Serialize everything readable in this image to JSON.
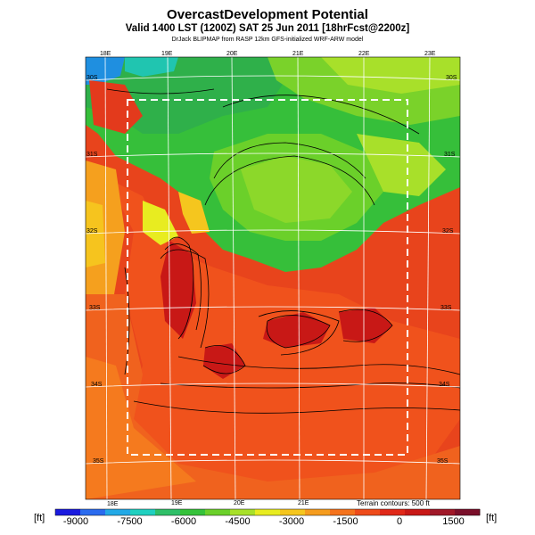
{
  "title": "OvercastDevelopment Potential",
  "subtitle": "Valid 1400 LST (1200Z) SAT 25 Jun 2011 [18hrFcst@2200z]",
  "credit": "DrJack BLIPMAP from RASP 12km GFS-initialized WRF-ARW model",
  "lon_top": [
    "18E",
    "19E",
    "20E",
    "21E",
    "22E",
    "23E"
  ],
  "lon_bottom": [
    "18E",
    "19E",
    "20E",
    "21E"
  ],
  "lat_right": [
    "30S",
    "31S",
    "32S",
    "33S",
    "34S",
    "35S"
  ],
  "lat_left": [
    "30S",
    "31S",
    "32S",
    "33S",
    "34S",
    "35S"
  ],
  "terrain_note": "Terrain contours: 500 ft",
  "colorbar": {
    "unit": "[ft]",
    "tick_labels": [
      "-9000",
      "-7500",
      "-6000",
      "-4500",
      "-3000",
      "-1500",
      "0",
      "1500"
    ],
    "colors": [
      "#1a1adf",
      "#2a6bee",
      "#23a9e6",
      "#20d0c0",
      "#2fbf68",
      "#35c23a",
      "#6bd02a",
      "#a8e02a",
      "#e8ec20",
      "#f5c61e",
      "#f59c1e",
      "#f5731c",
      "#ee4b1a",
      "#e02818",
      "#c81816",
      "#a01828",
      "#7a0f2a"
    ]
  }
}
